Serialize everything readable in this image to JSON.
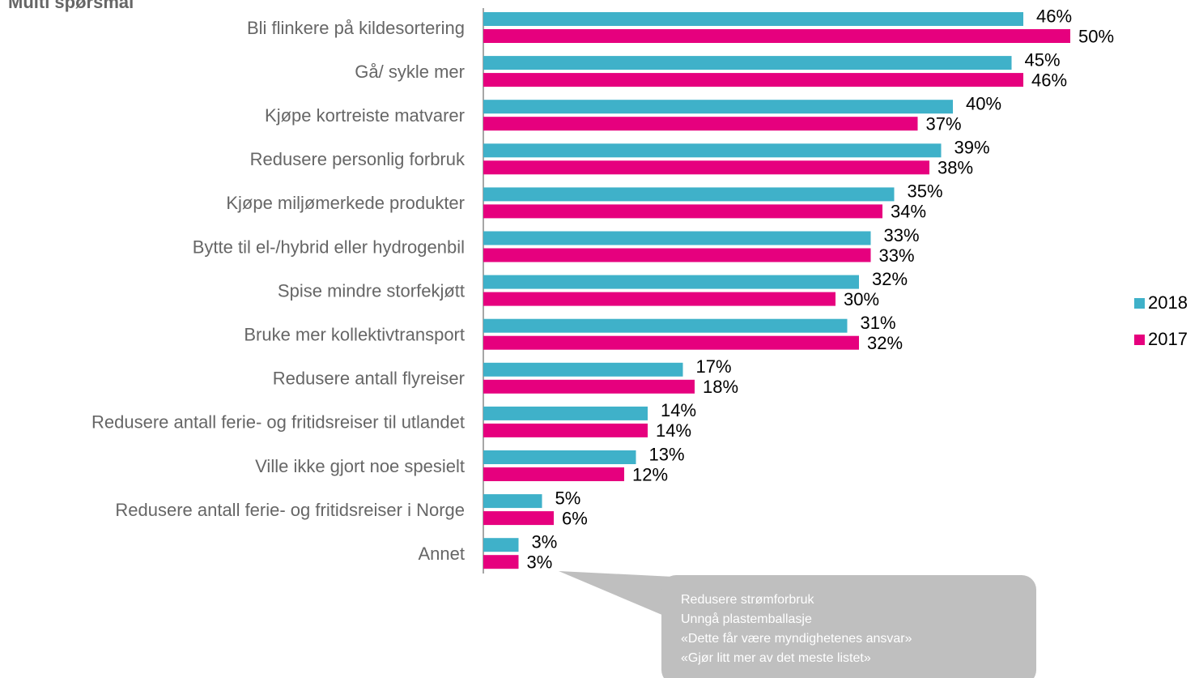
{
  "chart_data": {
    "type": "bar",
    "orientation": "horizontal",
    "title": "Multi spørsmål",
    "categories": [
      "Bli flinkere på kildesortering",
      "Gå/ sykle mer",
      "Kjøpe kortreiste matvarer",
      "Redusere personlig forbruk",
      "Kjøpe miljømerkede produkter",
      "Bytte til el-/hybrid eller hydrogenbil",
      "Spise mindre storfekjøtt",
      "Bruke mer kollektivtransport",
      "Redusere antall flyreiser",
      "Redusere antall ferie- og fritidsreiser til utlandet",
      "Ville ikke gjort noe spesielt",
      "Redusere antall ferie- og fritidsreiser i Norge",
      "Annet"
    ],
    "series": [
      {
        "name": "2018",
        "color": "#3fb1c9",
        "values": [
          46,
          45,
          40,
          39,
          35,
          33,
          32,
          31,
          17,
          14,
          13,
          5,
          3
        ],
        "value_labels": [
          "46%",
          "45%",
          "40%",
          "39%",
          "35%",
          "33%",
          "32%",
          "31%",
          "17%",
          "14%",
          "13%",
          "5%",
          "3%"
        ]
      },
      {
        "name": "2017",
        "color": "#e6007e",
        "values": [
          50,
          46,
          37,
          38,
          34,
          33,
          30,
          32,
          18,
          14,
          12,
          6,
          3
        ],
        "value_labels": [
          "50%",
          "46%",
          "37%",
          "38%",
          "34%",
          "33%",
          "30%",
          "32%",
          "18%",
          "14%",
          "12%",
          "6%",
          "3%"
        ]
      }
    ],
    "annotation": [
      "Redusere strømforbruk",
      "Unngå plastemballasje",
      "«Dette får være myndighetenes ansvar»",
      "«Gjør litt mer av det meste listet»"
    ]
  }
}
